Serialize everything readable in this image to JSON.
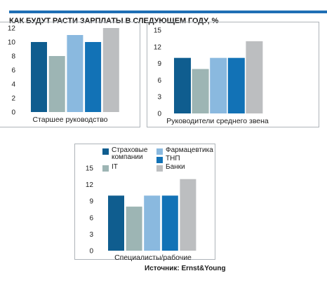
{
  "title": "КАК БУДУТ РАСТИ ЗАРПЛАТЫ В СЛЕДУЮЩЕМ ГОДУ, %",
  "source": "Источник: Ernst&Young",
  "colors": {
    "accent": "#1f6fb5",
    "frame": "#aeb4b9",
    "series": [
      "#0f5d8f",
      "#9db5b4",
      "#8ab9df",
      "#1272b6",
      "#bcbec0"
    ]
  },
  "legend": [
    {
      "label": "Страховые\nкомпании",
      "color": "#0f5d8f"
    },
    {
      "label": "Фармацевтика",
      "color": "#8ab9df"
    },
    {
      "label": "IT",
      "color": "#9db5b4"
    },
    {
      "label": "ТНП",
      "color": "#1272b6"
    },
    {
      "label": "Банки",
      "color": "#bcbec0"
    }
  ],
  "chart_data": [
    {
      "type": "bar",
      "xlabel": "Старшее руководство",
      "categories": [
        "Страховые компании",
        "IT",
        "Фармацевтика",
        "ТНП",
        "Банки"
      ],
      "values": [
        10,
        8,
        11,
        10,
        12
      ],
      "ylim": [
        0,
        12
      ],
      "yticks": [
        0,
        2,
        4,
        6,
        8,
        10,
        12
      ]
    },
    {
      "type": "bar",
      "xlabel": "Руководители среднего звена",
      "categories": [
        "Страховые компании",
        "IT",
        "Фармацевтика",
        "ТНП",
        "Банки"
      ],
      "values": [
        10,
        8,
        10,
        10,
        13
      ],
      "ylim": [
        0,
        15
      ],
      "yticks": [
        0,
        3,
        6,
        9,
        12,
        15
      ]
    },
    {
      "type": "bar",
      "xlabel": "Специалисты/рабочие",
      "categories": [
        "Страховые компании",
        "IT",
        "Фармацевтика",
        "ТНП",
        "Банки"
      ],
      "values": [
        10,
        8,
        10,
        10,
        13
      ],
      "ylim": [
        0,
        15
      ],
      "yticks": [
        0,
        3,
        6,
        9,
        12,
        15
      ]
    }
  ]
}
